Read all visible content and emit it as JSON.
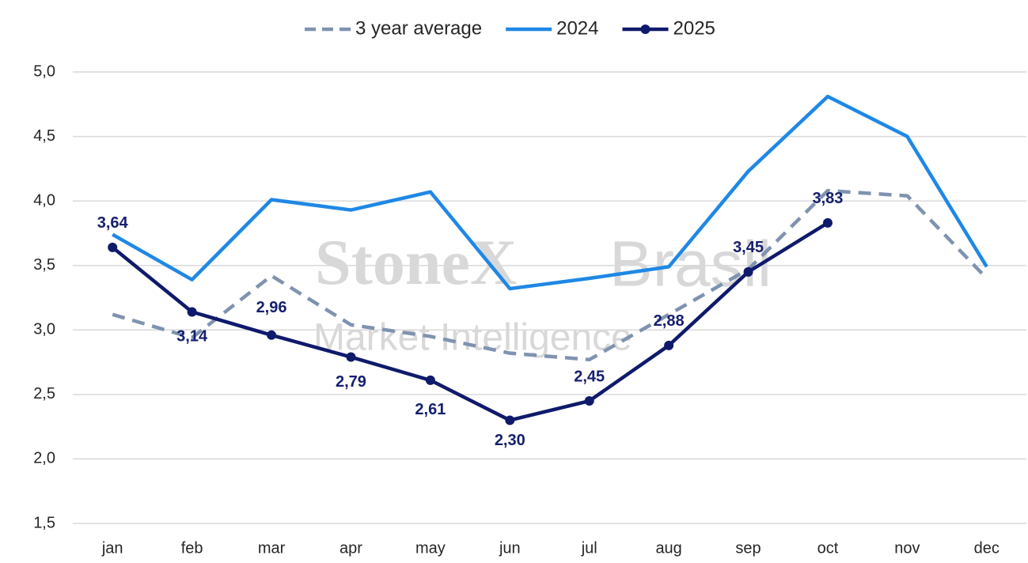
{
  "chart_data": {
    "type": "line",
    "watermark": {
      "brand": "StoneX",
      "suffix": "Brasil",
      "tagline": "Market Intelligence"
    },
    "categories": [
      "jan",
      "feb",
      "mar",
      "apr",
      "may",
      "jun",
      "jul",
      "aug",
      "sep",
      "oct",
      "nov",
      "dec"
    ],
    "series": [
      {
        "name": "3 year average",
        "color": "#7f93b0",
        "dashed": true,
        "markers": false,
        "values": [
          3.12,
          2.94,
          3.42,
          3.04,
          2.95,
          2.82,
          2.77,
          3.12,
          3.47,
          4.08,
          4.04,
          3.4
        ]
      },
      {
        "name": "2024",
        "color": "#1f88e5",
        "dashed": false,
        "markers": false,
        "values": [
          3.74,
          3.39,
          4.01,
          3.93,
          4.07,
          3.32,
          3.4,
          3.49,
          4.23,
          4.81,
          4.5,
          3.49
        ]
      },
      {
        "name": "2025",
        "color": "#0f1a6b",
        "dashed": false,
        "markers": true,
        "values": [
          3.64,
          3.14,
          2.96,
          2.79,
          2.61,
          2.3,
          2.45,
          2.88,
          3.45,
          3.83,
          null,
          null
        ],
        "value_labels": [
          "3,64",
          "3,14",
          "2,96",
          "2,79",
          "2,61",
          "2,30",
          "2,45",
          "2,88",
          "3,45",
          "3,83",
          null,
          null
        ]
      }
    ],
    "ylim": [
      1.5,
      5.0
    ],
    "yticks": [
      {
        "value": 1.5,
        "label": "1,5"
      },
      {
        "value": 2.0,
        "label": "2,0"
      },
      {
        "value": 2.5,
        "label": "2,5"
      },
      {
        "value": 3.0,
        "label": "3,0"
      },
      {
        "value": 3.5,
        "label": "3,5"
      },
      {
        "value": 4.0,
        "label": "4,0"
      },
      {
        "value": 4.5,
        "label": "4,5"
      },
      {
        "value": 5.0,
        "label": "5,0"
      }
    ],
    "grid": true,
    "legend": "top"
  }
}
